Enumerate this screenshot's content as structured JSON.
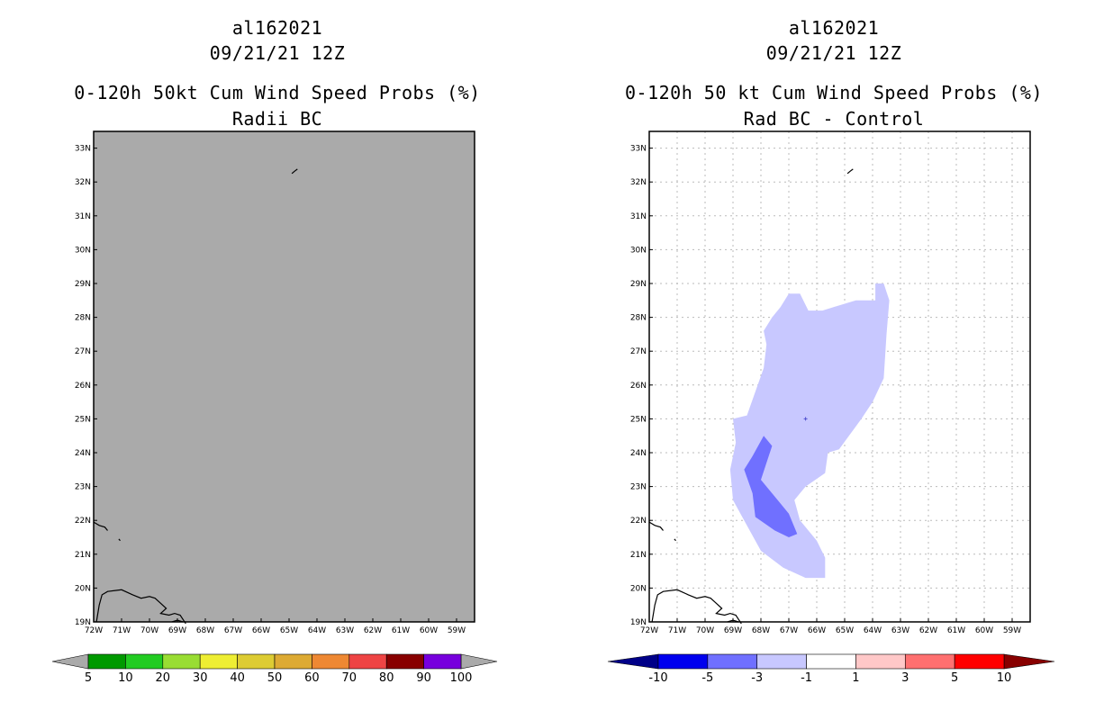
{
  "chart_data": [
    {
      "type": "map",
      "title": [
        "al162021",
        "09/21/21 12Z",
        "0-120h 50kt Cum Wind Speed Probs (%)",
        "Radii BC"
      ],
      "lon_ticks": [
        "72W",
        "71W",
        "70W",
        "69W",
        "68W",
        "67W",
        "66W",
        "65W",
        "64W",
        "63W",
        "62W",
        "61W",
        "60W",
        "59W"
      ],
      "lat_ticks": [
        "19N",
        "20N",
        "21N",
        "22N",
        "23N",
        "24N",
        "25N",
        "26N",
        "27N",
        "28N",
        "29N",
        "30N",
        "31N",
        "32N",
        "33N"
      ],
      "lon_range": [
        -72,
        -58.7
      ],
      "lat_range": [
        19,
        33.5
      ],
      "field": "uniform below 5%",
      "background_color": "#aaaaaa",
      "colorbar": {
        "labels": [
          "5",
          "10",
          "20",
          "30",
          "40",
          "50",
          "60",
          "70",
          "80",
          "90",
          "100"
        ],
        "colors": [
          "#009900",
          "#22cc22",
          "#99dd33",
          "#eeee33",
          "#ddcc33",
          "#ddaa33",
          "#ee8833",
          "#ee4444",
          "#880000",
          "#7700dd"
        ],
        "under_color": "#aaaaaa",
        "over_color": "#aaaaaa"
      }
    },
    {
      "type": "map",
      "title": [
        "al162021",
        "09/21/21 12Z",
        "0-120h 50 kt Cum Wind Speed Probs (%)",
        "Rad BC - Control"
      ],
      "lon_ticks": [
        "72W",
        "71W",
        "70W",
        "69W",
        "68W",
        "67W",
        "66W",
        "65W",
        "64W",
        "63W",
        "62W",
        "61W",
        "60W",
        "59W"
      ],
      "lat_ticks": [
        "19N",
        "20N",
        "21N",
        "22N",
        "23N",
        "24N",
        "25N",
        "26N",
        "27N",
        "28N",
        "29N",
        "30N",
        "31N",
        "32N",
        "33N"
      ],
      "lon_range": [
        -72,
        -58.7
      ],
      "lat_range": [
        19,
        33.5
      ],
      "gridlines": true,
      "regions": [
        {
          "level": "-3 to -1",
          "color": "#c8c8ff",
          "outline": [
            [
              -67.0,
              28.7
            ],
            [
              -66.6,
              28.7
            ],
            [
              -66.3,
              28.2
            ],
            [
              -65.8,
              28.2
            ],
            [
              -65.4,
              28.3
            ],
            [
              -64.6,
              28.5
            ],
            [
              -63.9,
              28.5
            ],
            [
              -63.9,
              29.0
            ],
            [
              -63.6,
              29.0
            ],
            [
              -63.4,
              28.5
            ],
            [
              -63.5,
              27.5
            ],
            [
              -63.6,
              26.2
            ],
            [
              -64.0,
              25.5
            ],
            [
              -64.4,
              25.0
            ],
            [
              -65.2,
              24.1
            ],
            [
              -65.6,
              24.0
            ],
            [
              -65.7,
              23.4
            ],
            [
              -66.4,
              23.0
            ],
            [
              -66.8,
              22.6
            ],
            [
              -66.6,
              22.0
            ],
            [
              -66.0,
              21.4
            ],
            [
              -65.7,
              20.9
            ],
            [
              -65.7,
              20.3
            ],
            [
              -66.4,
              20.3
            ],
            [
              -67.2,
              20.6
            ],
            [
              -68.0,
              21.1
            ],
            [
              -68.6,
              22.0
            ],
            [
              -69.0,
              22.6
            ],
            [
              -69.1,
              23.5
            ],
            [
              -68.9,
              24.3
            ],
            [
              -69.0,
              25.0
            ],
            [
              -68.5,
              25.1
            ],
            [
              -68.2,
              25.8
            ],
            [
              -67.9,
              26.5
            ],
            [
              -67.8,
              27.2
            ],
            [
              -67.9,
              27.6
            ],
            [
              -67.6,
              28.0
            ],
            [
              -67.3,
              28.3
            ]
          ]
        },
        {
          "level": "-5 to -3",
          "color": "#7070ff",
          "outline": [
            [
              -67.9,
              24.5
            ],
            [
              -67.6,
              24.2
            ],
            [
              -67.8,
              23.7
            ],
            [
              -68.0,
              23.2
            ],
            [
              -67.4,
              22.6
            ],
            [
              -67.0,
              22.2
            ],
            [
              -66.7,
              21.6
            ],
            [
              -67.0,
              21.5
            ],
            [
              -67.5,
              21.7
            ],
            [
              -68.2,
              22.1
            ],
            [
              -68.3,
              22.8
            ],
            [
              -68.6,
              23.5
            ],
            [
              -68.3,
              23.9
            ]
          ]
        }
      ],
      "colorbar": {
        "labels": [
          "-10",
          "-5",
          "-3",
          "-1",
          "1",
          "3",
          "5",
          "10"
        ],
        "colors": [
          "#0000ee",
          "#7070ff",
          "#c8c8ff",
          "#ffffff",
          "#ffc8c8",
          "#ff7070",
          "#ff0000"
        ],
        "under_color": "#000088",
        "over_color": "#880000"
      }
    }
  ]
}
